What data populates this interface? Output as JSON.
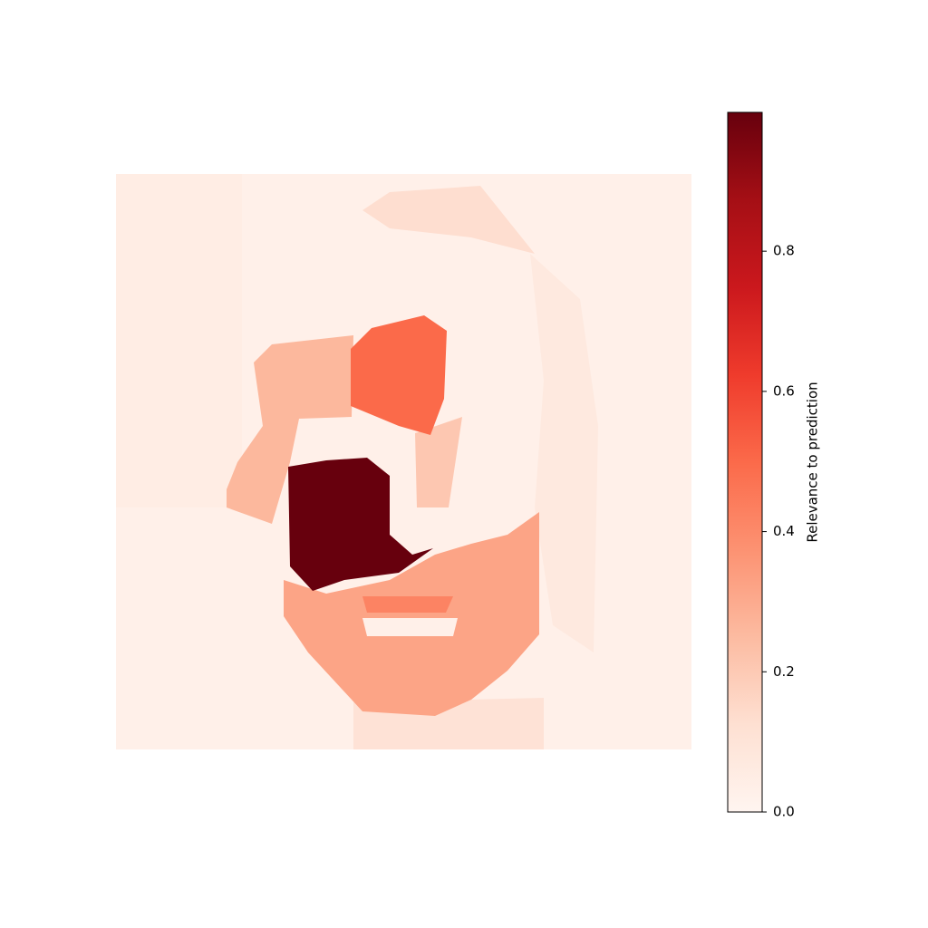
{
  "chart_data": {
    "type": "heatmap",
    "colorbar_label": "Relevance to prediction",
    "colormap": "Reds",
    "values": [
      0.03,
      0.05,
      0.07,
      0.13,
      0.11,
      0.26,
      0.21,
      0.5,
      0.32,
      0.998,
      0.42
    ],
    "zlim": [
      0,
      0.998
    ],
    "zticks": [
      {
        "value": 0,
        "label": "0.0"
      },
      0.2,
      0.4,
      0.6,
      0.8
    ]
  }
}
